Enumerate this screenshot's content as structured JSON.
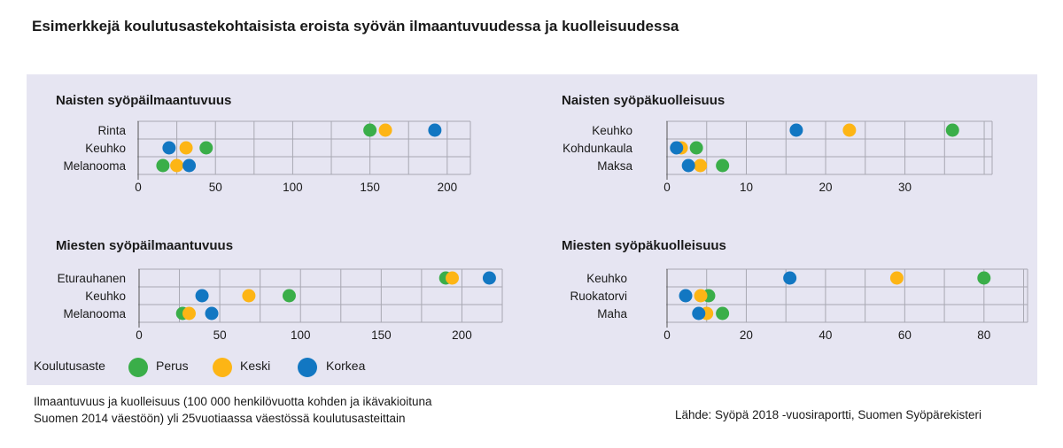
{
  "title": "Esimerkkejä koulutusastekohtaisista eroista syövän ilmaantuvuudessa ja kuolleisuudessa",
  "colors": {
    "Perus": "#3aae49",
    "Keski": "#fdb515",
    "Korkea": "#1277c2",
    "background": "#e6e5f2",
    "grid": "#a8a8b2"
  },
  "legend": {
    "title": "Koulutusaste",
    "items": [
      {
        "label": "Perus",
        "color": "#3aae49"
      },
      {
        "label": "Keski",
        "color": "#fdb515"
      },
      {
        "label": "Korkea",
        "color": "#1277c2"
      }
    ]
  },
  "footnote": {
    "line1": "Ilmaantuvuus ja kuolleisuus (100 000 henkilövuotta kohden ja ikävakioituna",
    "line2": "Suomen 2014 väestöön) yli 25vuotiaassa väestössä koulutusasteittain"
  },
  "source": "Lähde: Syöpä 2018 -vuosiraportti, Suomen Syöpärekisteri",
  "chart_data": [
    {
      "type": "scatter",
      "title": "Naisten syöpäilmaantuvuus",
      "categories": [
        "Rinta",
        "Keuhko",
        "Melanooma"
      ],
      "xlim": [
        0,
        215
      ],
      "xticks": [
        0,
        50,
        100,
        150,
        200
      ],
      "series": [
        {
          "name": "Perus",
          "values": [
            150,
            44,
            16
          ]
        },
        {
          "name": "Keski",
          "values": [
            160,
            31,
            25
          ]
        },
        {
          "name": "Korkea",
          "values": [
            192,
            20,
            33
          ]
        }
      ]
    },
    {
      "type": "scatter",
      "title": "Naisten syöpäkuolleisuus",
      "categories": [
        "Keuhko",
        "Kohdunkaula",
        "Maksa"
      ],
      "xlim": [
        0,
        41
      ],
      "xticks": [
        0,
        10,
        20,
        30
      ],
      "series": [
        {
          "name": "Perus",
          "values": [
            36,
            3.7,
            7
          ]
        },
        {
          "name": "Keski",
          "values": [
            23,
            1.8,
            4.2
          ]
        },
        {
          "name": "Korkea",
          "values": [
            16.3,
            1.2,
            2.7
          ]
        }
      ]
    },
    {
      "type": "scatter",
      "title": "Miesten syöpäilmaantuvuus",
      "categories": [
        "Eturauhanen",
        "Keuhko",
        "Melanooma"
      ],
      "xlim": [
        0,
        225
      ],
      "xticks": [
        0,
        50,
        100,
        150,
        200
      ],
      "series": [
        {
          "name": "Perus",
          "values": [
            190,
            93,
            27
          ]
        },
        {
          "name": "Keski",
          "values": [
            194,
            68,
            31
          ]
        },
        {
          "name": "Korkea",
          "values": [
            217,
            39,
            45
          ]
        }
      ]
    },
    {
      "type": "scatter",
      "title": "Miesten syöpäkuolleisuus",
      "categories": [
        "Keuhko",
        "Ruokatorvi",
        "Maha"
      ],
      "xlim": [
        0,
        91
      ],
      "xticks": [
        0,
        20,
        40,
        60,
        80
      ],
      "series": [
        {
          "name": "Perus",
          "values": [
            80,
            10.5,
            14
          ]
        },
        {
          "name": "Keski",
          "values": [
            58,
            8.5,
            10
          ]
        },
        {
          "name": "Korkea",
          "values": [
            31,
            4.7,
            8
          ]
        }
      ]
    }
  ]
}
